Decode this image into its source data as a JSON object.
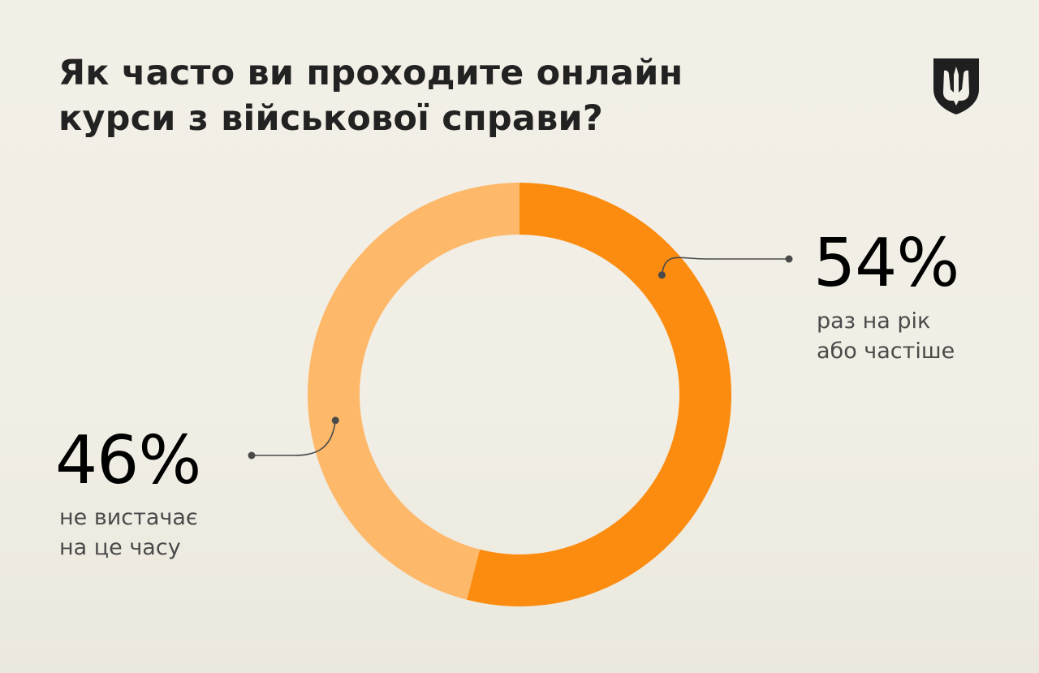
{
  "header": {
    "title_line1": "Як часто ви проходите онлайн",
    "title_line2": "курси з військової справи?"
  },
  "emblem": {
    "icon": "trident-shield-icon"
  },
  "chart_data": {
    "type": "pie",
    "title": "Як часто ви проходите онлайн курси з військової справи?",
    "donut": true,
    "legend": "none",
    "series": [
      {
        "name": "",
        "values": [
          54,
          46
        ]
      }
    ],
    "categories": [
      "раз на рік або частіше",
      "не вистачає на це часу"
    ],
    "slices": [
      {
        "value": 54,
        "label": "54%",
        "desc_line1": "раз на рік",
        "desc_line2": "або частіше",
        "color": "#fb8c0f",
        "side": "right"
      },
      {
        "value": 46,
        "label": "46%",
        "desc_line1": "не вистачає",
        "desc_line2": "на це часу",
        "color": "#fdb86a",
        "side": "left"
      }
    ]
  },
  "colors": {
    "background": "#f2efe6",
    "accent_primary": "#fb8c0f",
    "accent_secondary": "#fdb86a",
    "text": "#222222",
    "leader": "#4a4a4a"
  }
}
